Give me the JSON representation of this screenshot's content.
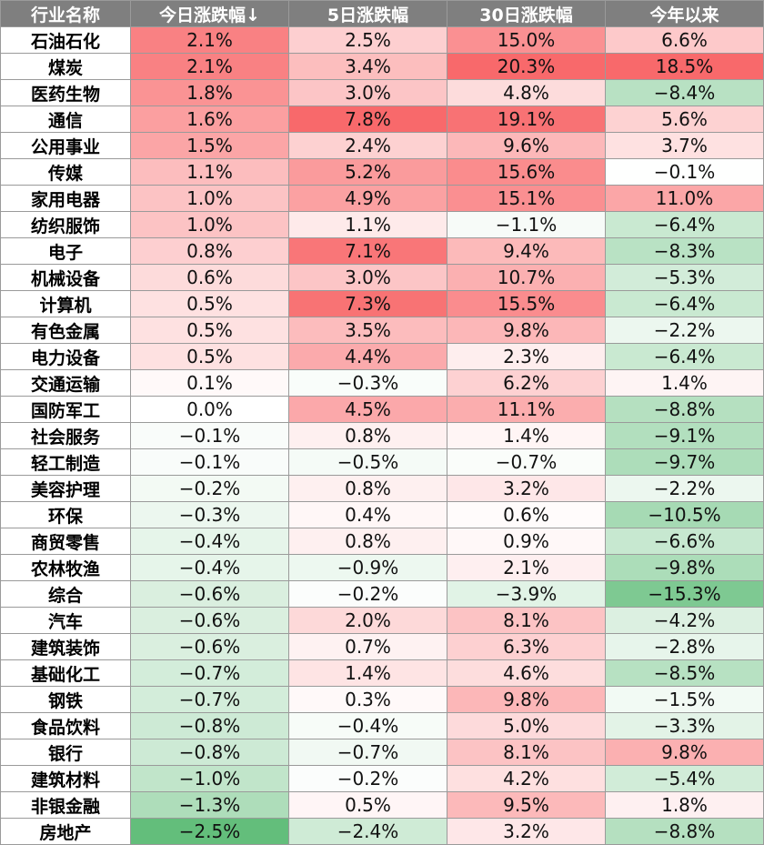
{
  "chart_data": {
    "type": "table",
    "columns": [
      "行业名称",
      "今日涨跌幅↓",
      "5日涨跌幅",
      "30日涨跌幅",
      "今年以来"
    ],
    "rows": [
      [
        "石油石化",
        "2.1%",
        "2.5%",
        "15.0%",
        "6.6%"
      ],
      [
        "煤炭",
        "2.1%",
        "3.4%",
        "20.3%",
        "18.5%"
      ],
      [
        "医药生物",
        "1.8%",
        "3.0%",
        "4.8%",
        "−8.4%"
      ],
      [
        "通信",
        "1.6%",
        "7.8%",
        "19.1%",
        "5.6%"
      ],
      [
        "公用事业",
        "1.5%",
        "2.4%",
        "9.6%",
        "3.7%"
      ],
      [
        "传媒",
        "1.1%",
        "5.2%",
        "15.6%",
        "−0.1%"
      ],
      [
        "家用电器",
        "1.0%",
        "4.9%",
        "15.1%",
        "11.0%"
      ],
      [
        "纺织服饰",
        "1.0%",
        "1.1%",
        "−1.1%",
        "−6.4%"
      ],
      [
        "电子",
        "0.8%",
        "7.1%",
        "9.4%",
        "−8.3%"
      ],
      [
        "机械设备",
        "0.6%",
        "3.0%",
        "10.7%",
        "−5.3%"
      ],
      [
        "计算机",
        "0.5%",
        "7.3%",
        "15.5%",
        "−6.4%"
      ],
      [
        "有色金属",
        "0.5%",
        "3.5%",
        "9.8%",
        "−2.2%"
      ],
      [
        "电力设备",
        "0.5%",
        "4.4%",
        "2.3%",
        "−6.4%"
      ],
      [
        "交通运输",
        "0.1%",
        "−0.3%",
        "6.2%",
        "1.4%"
      ],
      [
        "国防军工",
        "0.0%",
        "4.5%",
        "11.1%",
        "−8.8%"
      ],
      [
        "社会服务",
        "−0.1%",
        "0.8%",
        "1.4%",
        "−9.1%"
      ],
      [
        "轻工制造",
        "−0.1%",
        "−0.5%",
        "−0.7%",
        "−9.7%"
      ],
      [
        "美容护理",
        "−0.2%",
        "0.8%",
        "3.2%",
        "−2.2%"
      ],
      [
        "环保",
        "−0.3%",
        "0.4%",
        "0.6%",
        "−10.5%"
      ],
      [
        "商贸零售",
        "−0.4%",
        "0.8%",
        "0.9%",
        "−6.6%"
      ],
      [
        "农林牧渔",
        "−0.4%",
        "−0.9%",
        "2.1%",
        "−9.8%"
      ],
      [
        "综合",
        "−0.6%",
        "−0.2%",
        "−3.9%",
        "−15.3%"
      ],
      [
        "汽车",
        "−0.6%",
        "2.0%",
        "8.1%",
        "−4.2%"
      ],
      [
        "建筑装饰",
        "−0.6%",
        "0.7%",
        "6.3%",
        "−2.8%"
      ],
      [
        "基础化工",
        "−0.7%",
        "1.4%",
        "4.6%",
        "−8.5%"
      ],
      [
        "钢铁",
        "−0.7%",
        "0.3%",
        "9.8%",
        "−1.5%"
      ],
      [
        "食品饮料",
        "−0.8%",
        "−0.4%",
        "5.0%",
        "−3.3%"
      ],
      [
        "银行",
        "−0.8%",
        "−0.7%",
        "8.1%",
        "9.8%"
      ],
      [
        "建筑材料",
        "−1.0%",
        "−0.2%",
        "4.2%",
        "−5.4%"
      ],
      [
        "非银金融",
        "−1.3%",
        "0.5%",
        "9.5%",
        "1.8%"
      ],
      [
        "房地产",
        "−2.5%",
        "−2.4%",
        "3.2%",
        "−8.8%"
      ]
    ],
    "colors": {
      "header_bg": "#7f7f7f",
      "header_text": "#ffffff",
      "positive": "#f8696b",
      "negative": "#63be7b",
      "neutral": "#ffffff",
      "border": "#9a9a9a"
    }
  }
}
